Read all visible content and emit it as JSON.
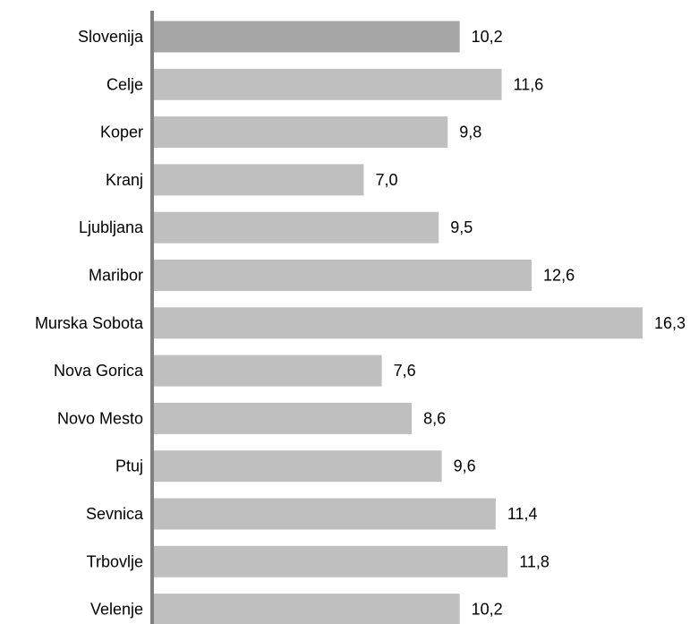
{
  "chart_data": {
    "type": "bar",
    "orientation": "horizontal",
    "categories": [
      "Slovenija",
      "Celje",
      "Koper",
      "Kranj",
      "Ljubljana",
      "Maribor",
      "Murska Sobota",
      "Nova Gorica",
      "Novo Mesto",
      "Ptuj",
      "Sevnica",
      "Trbovlje",
      "Velenje"
    ],
    "values": [
      10.2,
      11.6,
      9.8,
      7.0,
      9.5,
      12.6,
      16.3,
      7.6,
      8.6,
      9.6,
      11.4,
      11.8,
      10.2
    ],
    "value_labels": [
      "10,2",
      "11,6",
      "9,8",
      "7,0",
      "9,5",
      "12,6",
      "16,3",
      "7,6",
      "8,6",
      "9,6",
      "11,4",
      "11,8",
      "10,2"
    ],
    "highlight_index": 0,
    "xlim": [
      0,
      16.3
    ],
    "grid": false,
    "legend": "none",
    "colors": {
      "bar": "#bfbfbf",
      "highlight_bar": "#a6a6a6",
      "axis": "#808080"
    }
  }
}
